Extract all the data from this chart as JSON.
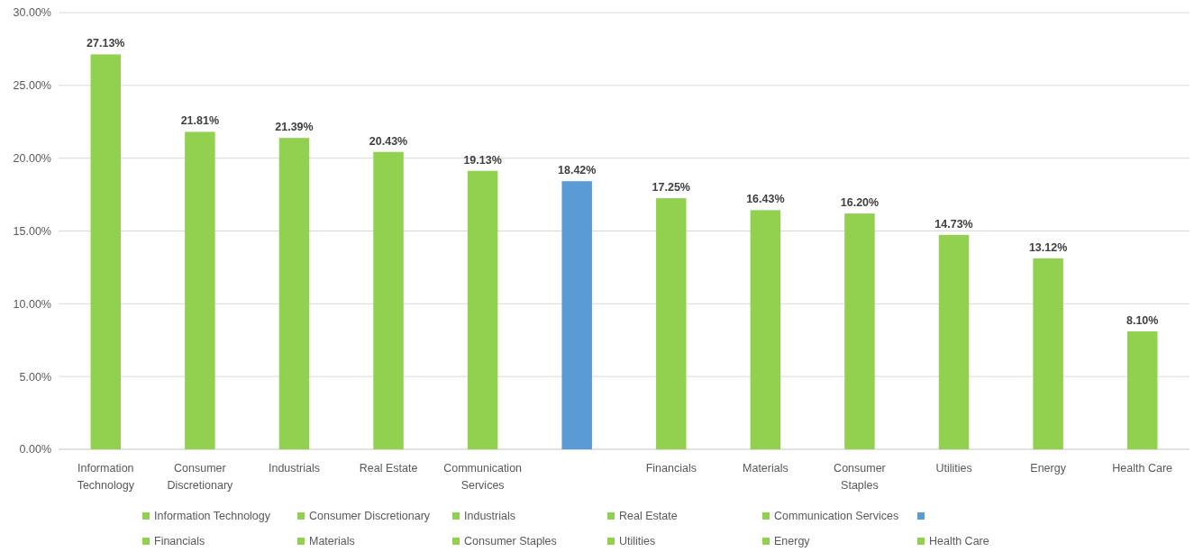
{
  "chart_data": {
    "type": "bar",
    "stacked": true,
    "categories": [
      "Information Technology",
      "Consumer Discretionary",
      "Industrials",
      "Real Estate",
      "Communication Services",
      null,
      "Financials",
      "Materials",
      "Consumer Staples",
      "Utilities",
      "Energy",
      "Health Care"
    ],
    "series": [
      {
        "name": "Information Technology",
        "color": "#92d050",
        "values": [
          27.13,
          null,
          null,
          null,
          null,
          null,
          null,
          null,
          null,
          null,
          null,
          null
        ],
        "value_labels": [
          "27.13%",
          null,
          null,
          null,
          null,
          null,
          null,
          null,
          null,
          null,
          null,
          null
        ]
      },
      {
        "name": "Consumer Discretionary",
        "color": "#92d050",
        "values": [
          null,
          21.81,
          null,
          null,
          null,
          null,
          null,
          null,
          null,
          null,
          null,
          null
        ],
        "value_labels": [
          null,
          "21.81%",
          null,
          null,
          null,
          null,
          null,
          null,
          null,
          null,
          null,
          null
        ]
      },
      {
        "name": "Industrials",
        "color": "#92d050",
        "values": [
          null,
          null,
          21.39,
          null,
          null,
          null,
          null,
          null,
          null,
          null,
          null,
          null
        ],
        "value_labels": [
          null,
          null,
          "21.39%",
          null,
          null,
          null,
          null,
          null,
          null,
          null,
          null,
          null
        ]
      },
      {
        "name": "Real Estate",
        "color": "#92d050",
        "values": [
          null,
          null,
          null,
          20.43,
          null,
          null,
          null,
          null,
          null,
          null,
          null,
          null
        ],
        "value_labels": [
          null,
          null,
          null,
          "20.43%",
          null,
          null,
          null,
          null,
          null,
          null,
          null,
          null
        ]
      },
      {
        "name": "Communication Services",
        "color": "#92d050",
        "values": [
          null,
          null,
          null,
          null,
          19.13,
          null,
          null,
          null,
          null,
          null,
          null,
          null
        ],
        "value_labels": [
          null,
          null,
          null,
          null,
          "19.13%",
          null,
          null,
          null,
          null,
          null,
          null,
          null
        ]
      },
      {
        "color": "#5b9bd5",
        "values": [
          null,
          null,
          null,
          null,
          null,
          18.42,
          null,
          null,
          null,
          null,
          null,
          null
        ],
        "value_labels": [
          null,
          null,
          null,
          null,
          null,
          "18.42%",
          null,
          null,
          null,
          null,
          null,
          null
        ]
      },
      {
        "name": "Financials",
        "color": "#92d050",
        "values": [
          null,
          null,
          null,
          null,
          null,
          null,
          17.25,
          null,
          null,
          null,
          null,
          null
        ],
        "value_labels": [
          null,
          null,
          null,
          null,
          null,
          null,
          "17.25%",
          null,
          null,
          null,
          null,
          null
        ]
      },
      {
        "name": "Materials",
        "color": "#92d050",
        "values": [
          null,
          null,
          null,
          null,
          null,
          null,
          null,
          16.43,
          null,
          null,
          null,
          null
        ],
        "value_labels": [
          null,
          null,
          null,
          null,
          null,
          null,
          null,
          "16.43%",
          null,
          null,
          null,
          null
        ]
      },
      {
        "name": "Consumer Staples",
        "color": "#92d050",
        "values": [
          null,
          null,
          null,
          null,
          null,
          null,
          null,
          null,
          16.2,
          null,
          null,
          null
        ],
        "value_labels": [
          null,
          null,
          null,
          null,
          null,
          null,
          null,
          null,
          "16.20%",
          null,
          null,
          null
        ]
      },
      {
        "name": "Utilities",
        "color": "#92d050",
        "values": [
          null,
          null,
          null,
          null,
          null,
          null,
          null,
          null,
          null,
          14.73,
          null,
          null
        ],
        "value_labels": [
          null,
          null,
          null,
          null,
          null,
          null,
          null,
          null,
          null,
          "14.73%",
          null,
          null
        ]
      },
      {
        "name": "Energy",
        "color": "#92d050",
        "values": [
          null,
          null,
          null,
          null,
          null,
          null,
          null,
          null,
          null,
          null,
          13.12,
          null
        ],
        "value_labels": [
          null,
          null,
          null,
          null,
          null,
          null,
          null,
          null,
          null,
          null,
          "13.12%",
          null
        ]
      },
      {
        "name": "Health Care",
        "color": "#92d050",
        "values": [
          null,
          null,
          null,
          null,
          null,
          null,
          null,
          null,
          null,
          null,
          null,
          8.1
        ],
        "value_labels": [
          null,
          null,
          null,
          null,
          null,
          null,
          null,
          null,
          null,
          null,
          null,
          "8.10%"
        ]
      }
    ],
    "ylim": [
      0,
      30
    ],
    "yticks": [
      {
        "value": 0,
        "label": "0.00%"
      },
      {
        "value": 5,
        "label": "5.00%"
      },
      {
        "value": 10,
        "label": "10.00%"
      },
      {
        "value": 15,
        "label": "15.00%"
      },
      {
        "value": 20,
        "label": "20.00%"
      },
      {
        "value": 25,
        "label": "25.00%"
      },
      {
        "value": 30,
        "label": "30.00%"
      }
    ],
    "grid": "y",
    "legend": "bottom"
  }
}
